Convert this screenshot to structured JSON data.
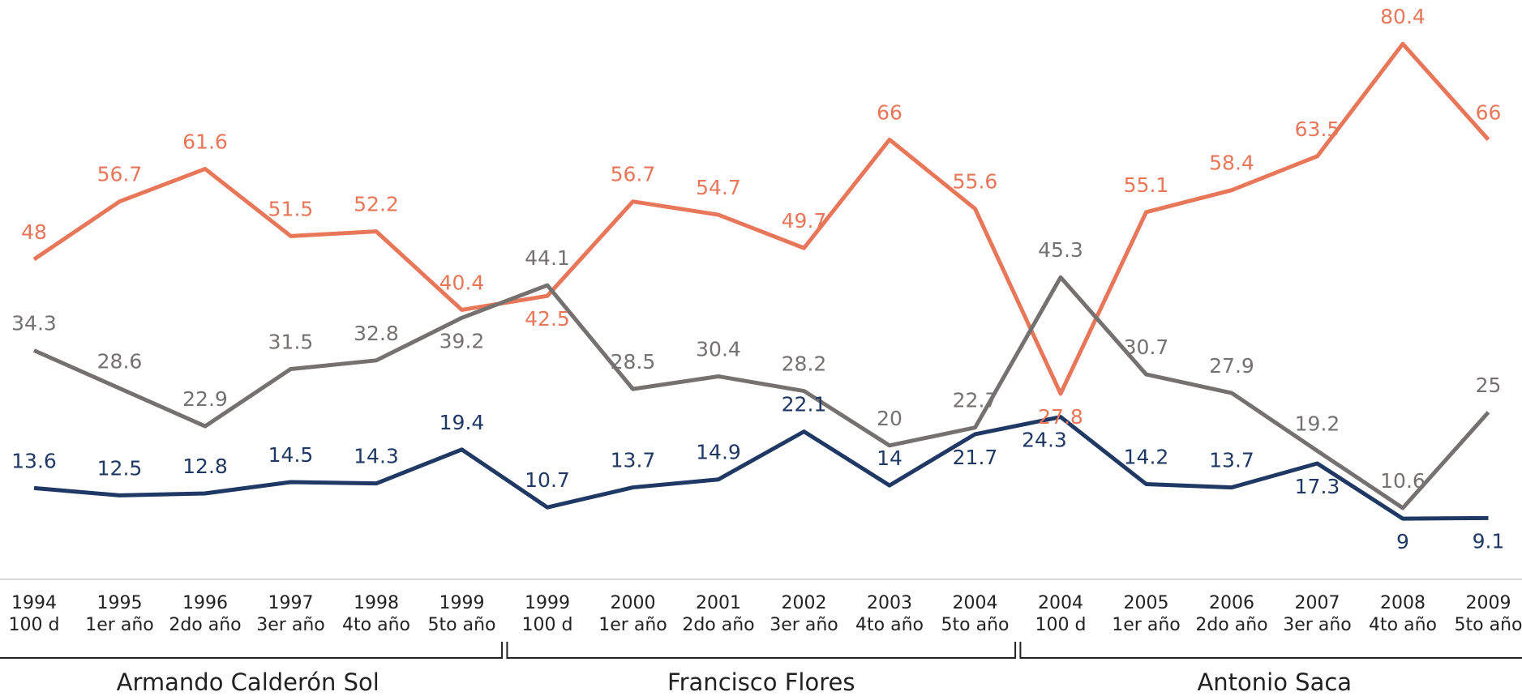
{
  "chart_data": {
    "type": "line",
    "categories": [
      [
        "1994",
        "100 d"
      ],
      [
        "1995",
        "1er año"
      ],
      [
        "1996",
        "2do año"
      ],
      [
        "1997",
        "3er año"
      ],
      [
        "1998",
        "4to año"
      ],
      [
        "1999",
        "5to año"
      ],
      [
        "1999",
        "100 d"
      ],
      [
        "2000",
        "1er año"
      ],
      [
        "2001",
        "2do año"
      ],
      [
        "2002",
        "3er año"
      ],
      [
        "2003",
        "4to año"
      ],
      [
        "2004",
        "5to año"
      ],
      [
        "2004",
        "100 d"
      ],
      [
        "2005",
        "1er año"
      ],
      [
        "2006",
        "2do año"
      ],
      [
        "2007",
        "3er año"
      ],
      [
        "2008",
        "4to año"
      ],
      [
        "2009",
        "5to año"
      ]
    ],
    "groups": [
      "Armando Calderón Sol",
      "Francisco Flores",
      "Antonio Saca"
    ],
    "series": [
      {
        "color": "#e8775a",
        "values": [
          48,
          56.7,
          61.6,
          51.5,
          52.2,
          40.4,
          42.5,
          56.7,
          54.7,
          49.7,
          66,
          55.6,
          27.8,
          55.1,
          58.4,
          63.5,
          80.4,
          66
        ]
      },
      {
        "color": "#767171",
        "values": [
          34.3,
          28.6,
          22.9,
          31.5,
          32.8,
          39.2,
          44.1,
          28.5,
          30.4,
          28.2,
          20,
          22.7,
          45.3,
          30.7,
          27.9,
          19.2,
          10.6,
          25
        ]
      },
      {
        "color": "#1f3864",
        "values": [
          13.6,
          12.5,
          12.8,
          14.5,
          14.3,
          19.4,
          10.7,
          13.7,
          14.9,
          22.1,
          14,
          21.7,
          24.3,
          14.2,
          13.7,
          17.3,
          9,
          9.1
        ]
      }
    ],
    "ylim": [
      0,
      87
    ]
  }
}
